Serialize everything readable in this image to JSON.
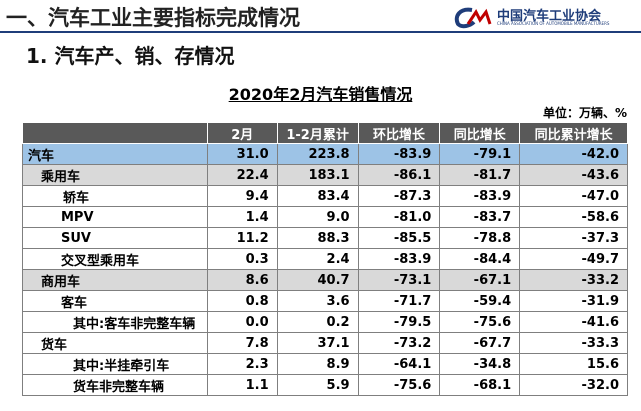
{
  "header": {
    "title": "一、汽车工业主要指标完成情况",
    "logo_text": "中国汽车工业协会",
    "logo_subtext": "CHINA ASSOCIATION OF AUTOMOBILE MANUFACTURERS"
  },
  "section": {
    "title": "1. 汽车产、销、存情况"
  },
  "table": {
    "title": "2020年2月汽车销售情况",
    "unit": "单位：万辆、%",
    "columns": [
      "2月",
      "1-2月累计",
      "环比增长",
      "同比增长",
      "同比累计增长"
    ],
    "rows": [
      [
        "汽车",
        "31.0",
        "223.8",
        "-83.9",
        "-79.1",
        "-42.0"
      ],
      [
        "乘用车",
        "22.4",
        "183.1",
        "-86.1",
        "-81.7",
        "-43.6"
      ],
      [
        "轿车",
        "9.4",
        "83.4",
        "-87.3",
        "-83.9",
        "-47.0"
      ],
      [
        "MPV",
        "1.4",
        "9.0",
        "-81.0",
        "-83.7",
        "-58.6"
      ],
      [
        "SUV",
        "11.2",
        "88.3",
        "-85.5",
        "-78.8",
        "-37.3"
      ],
      [
        "交叉型乘用车",
        "0.3",
        "2.4",
        "-83.9",
        "-84.4",
        "-49.7"
      ],
      [
        "商用车",
        "8.6",
        "40.7",
        "-73.1",
        "-67.1",
        "-33.2"
      ],
      [
        "客车",
        "0.8",
        "3.6",
        "-71.7",
        "-59.4",
        "-31.9"
      ],
      [
        "其中:客车非完整车辆",
        "0.0",
        "0.2",
        "-79.5",
        "-75.6",
        "-41.6"
      ],
      [
        "货车",
        "7.8",
        "37.1",
        "-73.2",
        "-67.7",
        "-33.3"
      ],
      [
        "其中:半挂牵引车",
        "2.3",
        "8.9",
        "-64.1",
        "-34.8",
        "15.6"
      ],
      [
        "货车非完整车辆",
        "1.1",
        "5.9",
        "-75.6",
        "-68.1",
        "-32.0"
      ]
    ]
  }
}
